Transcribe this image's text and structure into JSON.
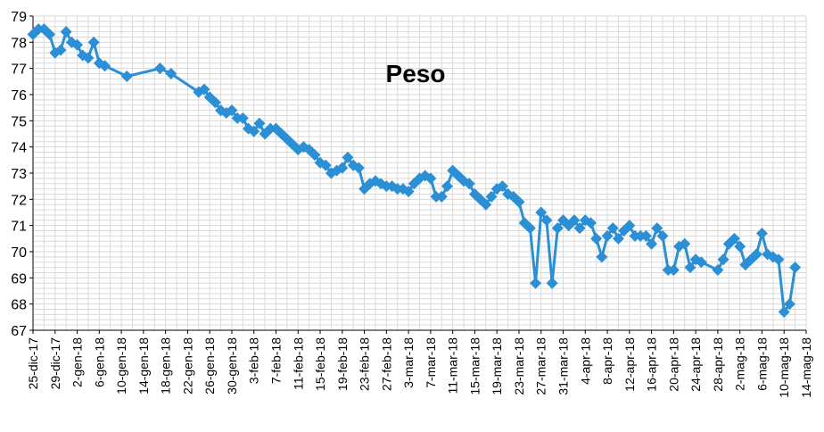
{
  "chart_data": {
    "type": "line",
    "title": "Peso",
    "xlabel": "",
    "ylabel": "",
    "ylim": [
      67,
      79
    ],
    "grid": true,
    "line_color": "#2a8fd4",
    "marker": "diamond",
    "y_ticks": [
      "67",
      "68",
      "69",
      "70",
      "71",
      "72",
      "73",
      "74",
      "75",
      "76",
      "77",
      "78",
      "79"
    ],
    "x_tick_labels": [
      "25-dic-17",
      "29-dic-17",
      "2-gen-18",
      "6-gen-18",
      "10-gen-18",
      "14-gen-18",
      "18-gen-18",
      "22-gen-18",
      "26-gen-18",
      "30-gen-18",
      "3-feb-18",
      "7-feb-18",
      "11-feb-18",
      "15-feb-18",
      "19-feb-18",
      "23-feb-18",
      "27-feb-18",
      "3-mar-18",
      "7-mar-18",
      "11-mar-18",
      "15-mar-18",
      "19-mar-18",
      "23-mar-18",
      "27-mar-18",
      "31-mar-18",
      "4-apr-18",
      "8-apr-18",
      "12-apr-18",
      "16-apr-18",
      "20-apr-18",
      "24-apr-18",
      "28-apr-18",
      "2-mag-18",
      "6-mag-18",
      "10-mag-18",
      "14-mag-18"
    ],
    "x_start": "2017-12-25",
    "x_end": "2018-05-14",
    "points": [
      [
        "2017-12-25",
        78.3
      ],
      [
        "2017-12-26",
        78.5
      ],
      [
        "2017-12-27",
        78.5
      ],
      [
        "2017-12-28",
        78.3
      ],
      [
        "2017-12-29",
        77.6
      ],
      [
        "2017-12-30",
        77.7
      ],
      [
        "2017-12-31",
        78.4
      ],
      [
        "2018-01-01",
        78.0
      ],
      [
        "2018-01-02",
        77.9
      ],
      [
        "2018-01-03",
        77.5
      ],
      [
        "2018-01-04",
        77.4
      ],
      [
        "2018-01-05",
        78.0
      ],
      [
        "2018-01-06",
        77.2
      ],
      [
        "2018-01-07",
        77.1
      ],
      [
        "2018-01-11",
        76.7
      ],
      [
        "2018-01-17",
        77.0
      ],
      [
        "2018-01-19",
        76.8
      ],
      [
        "2018-01-24",
        76.1
      ],
      [
        "2018-01-25",
        76.2
      ],
      [
        "2018-01-26",
        75.9
      ],
      [
        "2018-01-27",
        75.7
      ],
      [
        "2018-01-28",
        75.4
      ],
      [
        "2018-01-29",
        75.3
      ],
      [
        "2018-01-30",
        75.4
      ],
      [
        "2018-01-31",
        75.1
      ],
      [
        "2018-02-01",
        75.1
      ],
      [
        "2018-02-02",
        74.7
      ],
      [
        "2018-02-03",
        74.6
      ],
      [
        "2018-02-04",
        74.9
      ],
      [
        "2018-02-05",
        74.5
      ],
      [
        "2018-02-06",
        74.7
      ],
      [
        "2018-02-07",
        74.7
      ],
      [
        "2018-02-08",
        74.5
      ],
      [
        "2018-02-09",
        74.3
      ],
      [
        "2018-02-10",
        74.1
      ],
      [
        "2018-02-11",
        73.9
      ],
      [
        "2018-02-12",
        74.0
      ],
      [
        "2018-02-13",
        73.9
      ],
      [
        "2018-02-14",
        73.7
      ],
      [
        "2018-02-15",
        73.4
      ],
      [
        "2018-02-16",
        73.3
      ],
      [
        "2018-02-17",
        73.0
      ],
      [
        "2018-02-18",
        73.1
      ],
      [
        "2018-02-19",
        73.2
      ],
      [
        "2018-02-20",
        73.6
      ],
      [
        "2018-02-21",
        73.3
      ],
      [
        "2018-02-22",
        73.2
      ],
      [
        "2018-02-23",
        72.4
      ],
      [
        "2018-02-24",
        72.6
      ],
      [
        "2018-02-25",
        72.7
      ],
      [
        "2018-02-26",
        72.6
      ],
      [
        "2018-02-27",
        72.5
      ],
      [
        "2018-02-28",
        72.5
      ],
      [
        "2018-03-01",
        72.4
      ],
      [
        "2018-03-02",
        72.4
      ],
      [
        "2018-03-03",
        72.3
      ],
      [
        "2018-03-04",
        72.6
      ],
      [
        "2018-03-05",
        72.8
      ],
      [
        "2018-03-06",
        72.9
      ],
      [
        "2018-03-07",
        72.8
      ],
      [
        "2018-03-08",
        72.1
      ],
      [
        "2018-03-09",
        72.1
      ],
      [
        "2018-03-10",
        72.5
      ],
      [
        "2018-03-11",
        73.1
      ],
      [
        "2018-03-12",
        72.9
      ],
      [
        "2018-03-13",
        72.7
      ],
      [
        "2018-03-14",
        72.6
      ],
      [
        "2018-03-15",
        72.2
      ],
      [
        "2018-03-16",
        72.0
      ],
      [
        "2018-03-17",
        71.8
      ],
      [
        "2018-03-18",
        72.1
      ],
      [
        "2018-03-19",
        72.4
      ],
      [
        "2018-03-20",
        72.5
      ],
      [
        "2018-03-21",
        72.2
      ],
      [
        "2018-03-22",
        72.1
      ],
      [
        "2018-03-23",
        71.9
      ],
      [
        "2018-03-24",
        71.1
      ],
      [
        "2018-03-25",
        70.9
      ],
      [
        "2018-03-26",
        68.8
      ],
      [
        "2018-03-27",
        71.5
      ],
      [
        "2018-03-28",
        71.2
      ],
      [
        "2018-03-29",
        68.8
      ],
      [
        "2018-03-30",
        70.9
      ],
      [
        "2018-03-31",
        71.2
      ],
      [
        "2018-04-01",
        71.0
      ],
      [
        "2018-04-02",
        71.2
      ],
      [
        "2018-04-03",
        70.9
      ],
      [
        "2018-04-04",
        71.2
      ],
      [
        "2018-04-05",
        71.1
      ],
      [
        "2018-04-06",
        70.5
      ],
      [
        "2018-04-07",
        69.8
      ],
      [
        "2018-04-08",
        70.6
      ],
      [
        "2018-04-09",
        70.9
      ],
      [
        "2018-04-10",
        70.5
      ],
      [
        "2018-04-11",
        70.8
      ],
      [
        "2018-04-12",
        71.0
      ],
      [
        "2018-04-13",
        70.6
      ],
      [
        "2018-04-14",
        70.6
      ],
      [
        "2018-04-15",
        70.6
      ],
      [
        "2018-04-16",
        70.3
      ],
      [
        "2018-04-17",
        70.9
      ],
      [
        "2018-04-18",
        70.6
      ],
      [
        "2018-04-19",
        69.3
      ],
      [
        "2018-04-20",
        69.3
      ],
      [
        "2018-04-21",
        70.2
      ],
      [
        "2018-04-22",
        70.3
      ],
      [
        "2018-04-23",
        69.4
      ],
      [
        "2018-04-24",
        69.7
      ],
      [
        "2018-04-25",
        69.6
      ],
      [
        "2018-04-28",
        69.3
      ],
      [
        "2018-04-29",
        69.7
      ],
      [
        "2018-04-30",
        70.3
      ],
      [
        "2018-05-01",
        70.5
      ],
      [
        "2018-05-02",
        70.2
      ],
      [
        "2018-05-03",
        69.5
      ],
      [
        "2018-05-04",
        69.7
      ],
      [
        "2018-05-05",
        69.9
      ],
      [
        "2018-05-06",
        70.7
      ],
      [
        "2018-05-07",
        69.9
      ],
      [
        "2018-05-08",
        69.8
      ],
      [
        "2018-05-09",
        69.7
      ],
      [
        "2018-05-10",
        67.7
      ],
      [
        "2018-05-11",
        68.0
      ],
      [
        "2018-05-12",
        69.4
      ]
    ]
  }
}
